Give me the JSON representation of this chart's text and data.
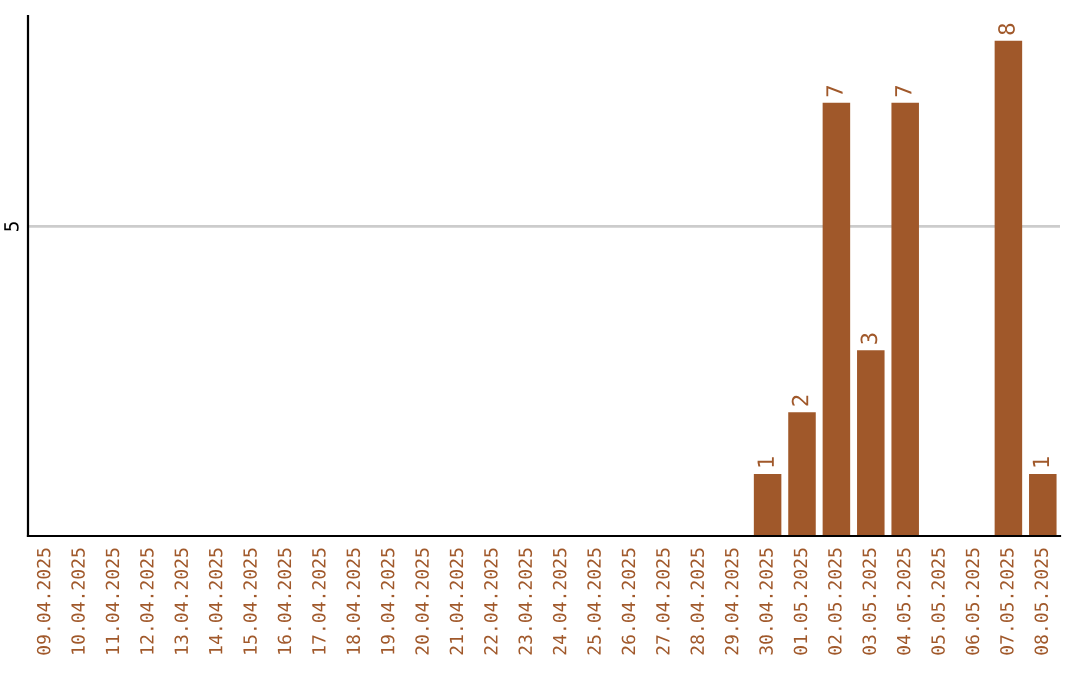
{
  "chart_data": {
    "type": "bar",
    "categories": [
      "09.04.2025",
      "10.04.2025",
      "11.04.2025",
      "12.04.2025",
      "13.04.2025",
      "14.04.2025",
      "15.04.2025",
      "16.04.2025",
      "17.04.2025",
      "18.04.2025",
      "19.04.2025",
      "20.04.2025",
      "21.04.2025",
      "22.04.2025",
      "23.04.2025",
      "24.04.2025",
      "25.04.2025",
      "26.04.2025",
      "27.04.2025",
      "28.04.2025",
      "29.04.2025",
      "30.04.2025",
      "01.05.2025",
      "02.05.2025",
      "03.05.2025",
      "04.05.2025",
      "05.05.2025",
      "06.05.2025",
      "07.05.2025",
      "08.05.2025"
    ],
    "values": [
      null,
      null,
      null,
      null,
      null,
      null,
      null,
      null,
      null,
      null,
      null,
      null,
      null,
      null,
      null,
      null,
      null,
      null,
      null,
      null,
      null,
      1,
      2,
      7,
      3,
      7,
      null,
      null,
      8,
      1
    ],
    "color": "#a0582a",
    "ylim": [
      0,
      8.4
    ],
    "yticks": [
      5
    ],
    "grid": "y",
    "data_labels": true
  }
}
